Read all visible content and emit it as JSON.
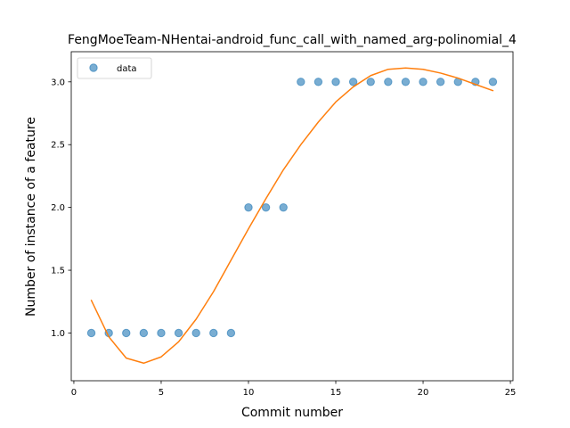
{
  "chart_data": {
    "type": "scatter",
    "title": "FengMoeTeam-NHentai-android_func_call_with_named_arg-polinomial_4",
    "xlabel": "Commit number",
    "ylabel": "Number of instance of a feature",
    "xlim": [
      -0.15,
      25.15
    ],
    "ylim": [
      0.62,
      3.24
    ],
    "xticks": [
      0,
      5,
      10,
      15,
      20,
      25
    ],
    "yticks": [
      1.0,
      1.5,
      2.0,
      2.5,
      3.0
    ],
    "xtick_labels": [
      "0",
      "5",
      "10",
      "15",
      "20",
      "25"
    ],
    "ytick_labels": [
      "1.0",
      "1.5",
      "2.0",
      "2.5",
      "3.0"
    ],
    "legend": {
      "position": "top-left",
      "entries": [
        "data"
      ]
    },
    "grid": false,
    "series": [
      {
        "name": "data",
        "kind": "scatter",
        "color": "#1f77b4",
        "x": [
          1,
          2,
          3,
          4,
          5,
          6,
          7,
          8,
          9,
          10,
          11,
          12,
          13,
          14,
          15,
          16,
          17,
          18,
          19,
          20,
          21,
          22,
          23,
          24
        ],
        "y": [
          1,
          1,
          1,
          1,
          1,
          1,
          1,
          1,
          1,
          2,
          2,
          2,
          3,
          3,
          3,
          3,
          3,
          3,
          3,
          3,
          3,
          3,
          3,
          3
        ]
      },
      {
        "kind": "line",
        "color": "#ff7f0e",
        "x": [
          1,
          2,
          3,
          4,
          5,
          6,
          7,
          8,
          9,
          10,
          11,
          12,
          13,
          14,
          15,
          16,
          17,
          18,
          19,
          20,
          21,
          22,
          23,
          24
        ],
        "y": [
          1.26,
          0.97,
          0.8,
          0.76,
          0.81,
          0.93,
          1.11,
          1.33,
          1.58,
          1.83,
          2.07,
          2.3,
          2.5,
          2.68,
          2.84,
          2.96,
          3.05,
          3.1,
          3.11,
          3.1,
          3.07,
          3.03,
          2.98,
          2.93
        ]
      }
    ]
  }
}
